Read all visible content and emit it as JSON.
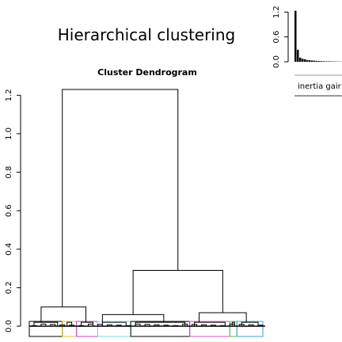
{
  "page_title": "Hierarchical clustering",
  "chart_data": [
    {
      "type": "dendrogram",
      "title": "Cluster Dendrogram",
      "ylim": [
        0,
        1.3
      ],
      "y_ticks": [
        "0.0",
        "0.2",
        "0.4",
        "0.6",
        "0.8",
        "1.0",
        "1.2"
      ],
      "y_tick_values": [
        0,
        0.2,
        0.4,
        0.6,
        0.8,
        1.0,
        1.2
      ],
      "n_leaves": 50,
      "merges": [
        {
          "name": "root",
          "height": 1.23,
          "x_left": 0.14,
          "x_right": 0.63
        },
        {
          "name": "left-main",
          "height": 0.1,
          "x_left": 0.05,
          "x_right": 0.24
        },
        {
          "name": "right-main",
          "height": 0.29,
          "x_left": 0.44,
          "x_right": 0.82
        },
        {
          "name": "right-left",
          "height": 0.06,
          "x_left": 0.31,
          "x_right": 0.57
        },
        {
          "name": "right-right",
          "height": 0.07,
          "x_left": 0.72,
          "x_right": 0.92
        }
      ],
      "cluster_boxes": [
        {
          "from": 0.0,
          "to": 0.14,
          "color": "#000000"
        },
        {
          "from": 0.14,
          "to": 0.2,
          "color": "#e6c229"
        },
        {
          "from": 0.2,
          "to": 0.29,
          "color": "#c83cc8"
        },
        {
          "from": 0.29,
          "to": 0.43,
          "color": "#7fd8e6"
        },
        {
          "from": 0.43,
          "to": 0.68,
          "color": "#000000"
        },
        {
          "from": 0.68,
          "to": 0.85,
          "color": "#d84fcf"
        },
        {
          "from": 0.85,
          "to": 0.88,
          "color": "#5fbf3f"
        },
        {
          "from": 0.88,
          "to": 0.99,
          "color": "#3fa0d8"
        }
      ]
    },
    {
      "type": "bar",
      "name": "inertia-gain",
      "xlabel": "inertia gair",
      "ylim": [
        0,
        1.3
      ],
      "y_ticks": [
        "0.0",
        "0.6",
        "1.2"
      ],
      "y_tick_values": [
        0,
        0.6,
        1.2
      ],
      "values": [
        1.23,
        0.29,
        0.1,
        0.07,
        0.06,
        0.04,
        0.035,
        0.03,
        0.025,
        0.02,
        0.018,
        0.015,
        0.013,
        0.011,
        0.01,
        0.009,
        0.008,
        0.007,
        0.006,
        0.005
      ]
    }
  ]
}
